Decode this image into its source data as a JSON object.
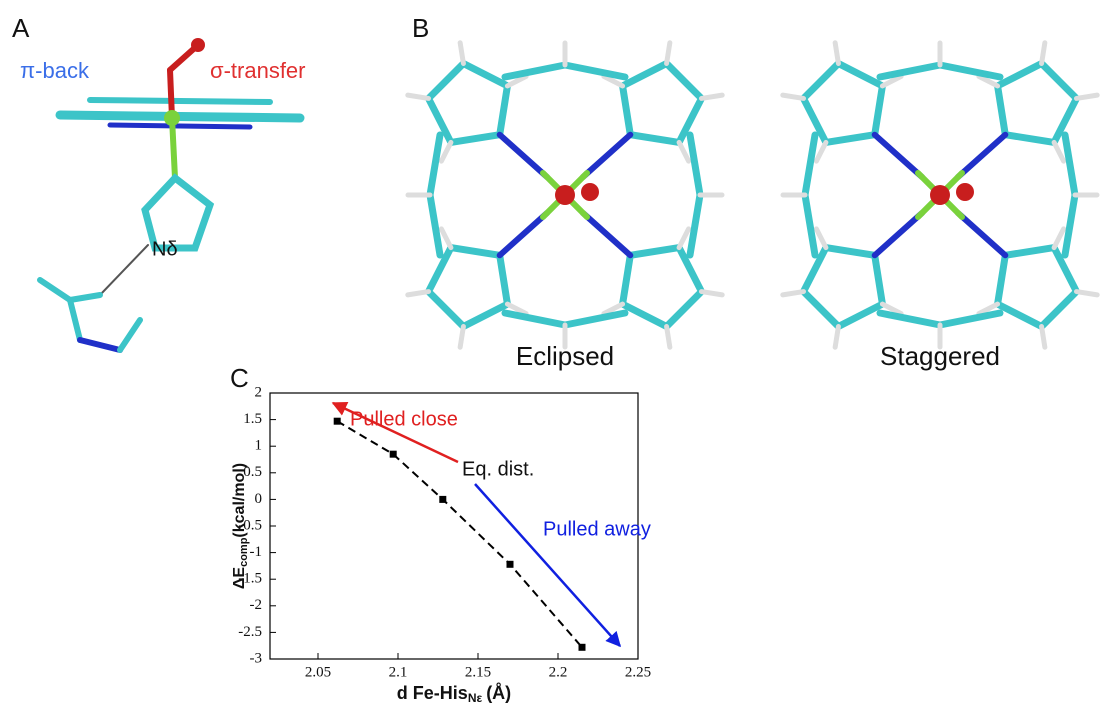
{
  "panels": {
    "a": {
      "letter": "A",
      "pi_back": "π-back",
      "sigma_transfer": "σ-transfer",
      "n_delta": "Nδ"
    },
    "b": {
      "letter": "B",
      "eclipsed": "Eclipsed",
      "staggered": "Staggered"
    },
    "c": {
      "letter": "C"
    }
  },
  "chart_data": {
    "type": "line",
    "ylabel": {
      "main": "ΔE",
      "sub": "comp",
      "unit": "(kcal/mol)"
    },
    "xlabel": {
      "main": "d Fe-His",
      "sub": "Nε",
      "unit": "(Å)"
    },
    "x": [
      2.062,
      2.097,
      2.128,
      2.17,
      2.215
    ],
    "series": [
      {
        "color": "#000000",
        "values": [
          1.47,
          0.85,
          0.0,
          -1.22,
          -2.78
        ]
      }
    ],
    "xlim": [
      2.02,
      2.25
    ],
    "xticks": [
      2.05,
      2.1,
      2.15,
      2.2,
      2.25
    ],
    "ylim": [
      -3,
      2
    ],
    "yticks": [
      -3,
      -2.5,
      -2,
      -1.5,
      -1,
      -0.5,
      0,
      0.5,
      1,
      1.5,
      2
    ],
    "annotations": {
      "pulled_close": "Pulled close",
      "eq_dist": "Eq. dist.",
      "pulled_away": "Pulled away"
    }
  }
}
